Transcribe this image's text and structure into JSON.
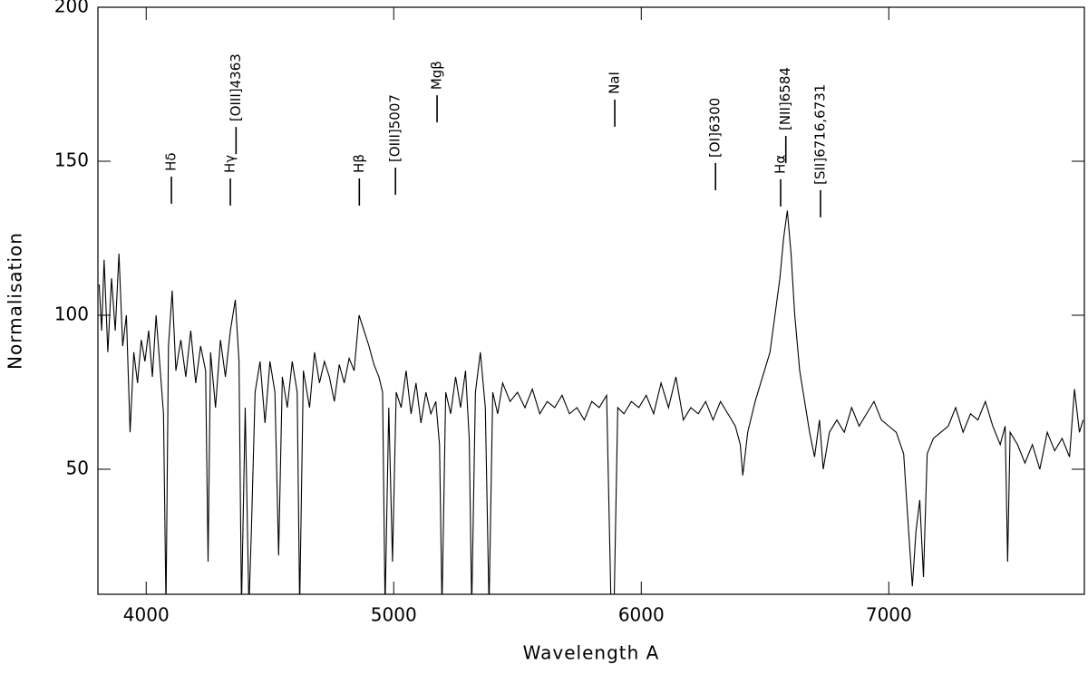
{
  "chart_data": {
    "type": "line",
    "xlabel": "Wavelength A",
    "ylabel": "Normalisation",
    "xlim": [
      3805,
      7790
    ],
    "ylim": [
      9.4,
      200
    ],
    "xticks": [
      4000,
      5000,
      6000,
      7000
    ],
    "yticks": [
      50,
      100,
      150,
      200
    ],
    "x": [
      3810,
      3820,
      3830,
      3845,
      3860,
      3875,
      3890,
      3905,
      3920,
      3935,
      3950,
      3965,
      3980,
      3995,
      4010,
      4025,
      4040,
      4055,
      4070,
      4080,
      4090,
      4105,
      4120,
      4140,
      4160,
      4180,
      4200,
      4220,
      4240,
      4250,
      4260,
      4280,
      4300,
      4320,
      4340,
      4360,
      4375,
      4385,
      4400,
      4415,
      4425,
      4440,
      4460,
      4480,
      4500,
      4520,
      4535,
      4550,
      4570,
      4590,
      4610,
      4620,
      4635,
      4660,
      4680,
      4700,
      4720,
      4740,
      4760,
      4780,
      4800,
      4820,
      4840,
      4860,
      4880,
      4900,
      4920,
      4940,
      4955,
      4965,
      4980,
      4995,
      5010,
      5030,
      5050,
      5070,
      5090,
      5110,
      5130,
      5150,
      5170,
      5185,
      5195,
      5210,
      5230,
      5250,
      5270,
      5290,
      5305,
      5315,
      5330,
      5350,
      5370,
      5385,
      5400,
      5420,
      5440,
      5470,
      5500,
      5530,
      5560,
      5590,
      5620,
      5650,
      5680,
      5710,
      5740,
      5770,
      5800,
      5830,
      5860,
      5878,
      5890,
      5905,
      5930,
      5960,
      5990,
      6020,
      6050,
      6080,
      6110,
      6140,
      6170,
      6200,
      6230,
      6260,
      6290,
      6320,
      6350,
      6380,
      6400,
      6410,
      6430,
      6460,
      6490,
      6520,
      6540,
      6560,
      6575,
      6590,
      6605,
      6620,
      6640,
      6660,
      6680,
      6700,
      6720,
      6735,
      6760,
      6790,
      6820,
      6850,
      6880,
      6910,
      6940,
      6970,
      7000,
      7030,
      7060,
      7080,
      7095,
      7110,
      7125,
      7140,
      7155,
      7180,
      7210,
      7240,
      7270,
      7300,
      7330,
      7360,
      7390,
      7420,
      7450,
      7470,
      7480,
      7490,
      7520,
      7550,
      7580,
      7610,
      7640,
      7670,
      7700,
      7730,
      7750,
      7770,
      7785
    ],
    "series": [
      {
        "color": "#000000",
        "values": [
          110,
          95,
          118,
          88,
          112,
          95,
          120,
          90,
          100,
          62,
          88,
          78,
          92,
          85,
          95,
          80,
          100,
          84,
          68,
          5,
          90,
          108,
          82,
          92,
          80,
          95,
          78,
          90,
          82,
          20,
          88,
          70,
          92,
          80,
          95,
          105,
          85,
          5,
          70,
          5,
          30,
          75,
          85,
          65,
          85,
          75,
          22,
          80,
          70,
          85,
          75,
          5,
          82,
          70,
          88,
          78,
          85,
          80,
          72,
          84,
          78,
          86,
          82,
          100,
          95,
          90,
          84,
          80,
          75,
          5,
          70,
          20,
          75,
          70,
          82,
          68,
          78,
          65,
          75,
          68,
          72,
          58,
          5,
          75,
          68,
          80,
          70,
          82,
          60,
          5,
          75,
          88,
          70,
          5,
          75,
          68,
          78,
          72,
          75,
          70,
          76,
          68,
          72,
          70,
          74,
          68,
          70,
          66,
          72,
          70,
          74,
          5,
          5,
          70,
          68,
          72,
          70,
          74,
          68,
          78,
          70,
          80,
          66,
          70,
          68,
          72,
          66,
          72,
          68,
          64,
          58,
          48,
          62,
          72,
          80,
          88,
          100,
          112,
          125,
          134,
          120,
          100,
          82,
          72,
          62,
          54,
          66,
          50,
          62,
          66,
          62,
          70,
          64,
          68,
          72,
          66,
          64,
          62,
          55,
          30,
          12,
          30,
          40,
          15,
          55,
          60,
          62,
          64,
          70,
          62,
          68,
          66,
          72,
          64,
          58,
          64,
          20,
          62,
          58,
          52,
          58,
          50,
          62,
          56,
          60,
          54,
          76,
          62,
          66
        ]
      }
    ],
    "annotations": [
      {
        "text": "Hδ",
        "x": 4102,
        "y": 136.2
      },
      {
        "text": "Hγ",
        "x": 4340,
        "y": 135.6
      },
      {
        "text": "[OIII]4363",
        "x": 4363,
        "y": 152.3
      },
      {
        "text": "Hβ",
        "x": 4861,
        "y": 135.6
      },
      {
        "text": "[OIII]5007",
        "x": 5007,
        "y": 139.1
      },
      {
        "text": "Mgβ",
        "x": 5175,
        "y": 162.6
      },
      {
        "text": "NaI",
        "x": 5893,
        "y": 161.2
      },
      {
        "text": "[OI]6300",
        "x": 6300,
        "y": 140.6
      },
      {
        "text": "Hα",
        "x": 6563,
        "y": 135.3
      },
      {
        "text": "[NII]6584",
        "x": 6584,
        "y": 149.4
      },
      {
        "text": "[SII]6716,6731",
        "x": 6724,
        "y": 131.8
      }
    ]
  }
}
